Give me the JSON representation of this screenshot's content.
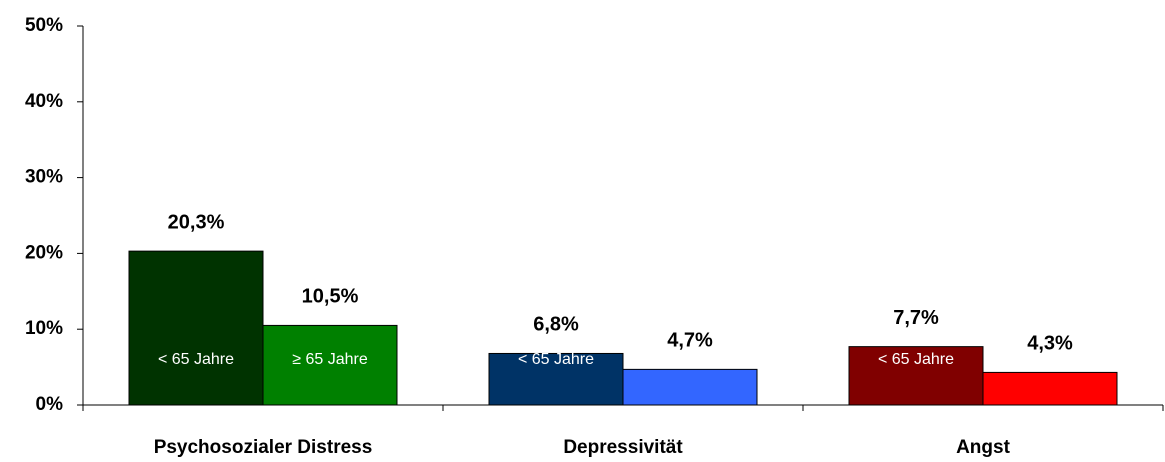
{
  "chart_data": {
    "type": "bar",
    "categories": [
      "Psychosozialer Distress",
      "Depressivität",
      "Angst"
    ],
    "series": [
      {
        "name": "< 65 Jahre",
        "colors": [
          "#003300",
          "#003366",
          "#800000"
        ],
        "values": [
          20.3,
          6.8,
          7.7
        ],
        "value_labels": [
          "20,3%",
          "6,8%",
          "7,7%"
        ]
      },
      {
        "name": "≥ 65 Jahre",
        "colors": [
          "#008000",
          "#3366ff",
          "#ff0000"
        ],
        "values": [
          10.5,
          4.7,
          4.3
        ],
        "value_labels": [
          "10,5%",
          "4,7%",
          "4,3%"
        ]
      }
    ],
    "ylim": [
      0,
      50
    ],
    "yticks": [
      {
        "value": 0,
        "label": "0%"
      },
      {
        "value": 10,
        "label": "10%"
      },
      {
        "value": 20,
        "label": "20%"
      },
      {
        "value": 30,
        "label": "30%"
      },
      {
        "value": 40,
        "label": "40%"
      },
      {
        "value": 50,
        "label": "50%"
      }
    ],
    "grid": false
  }
}
